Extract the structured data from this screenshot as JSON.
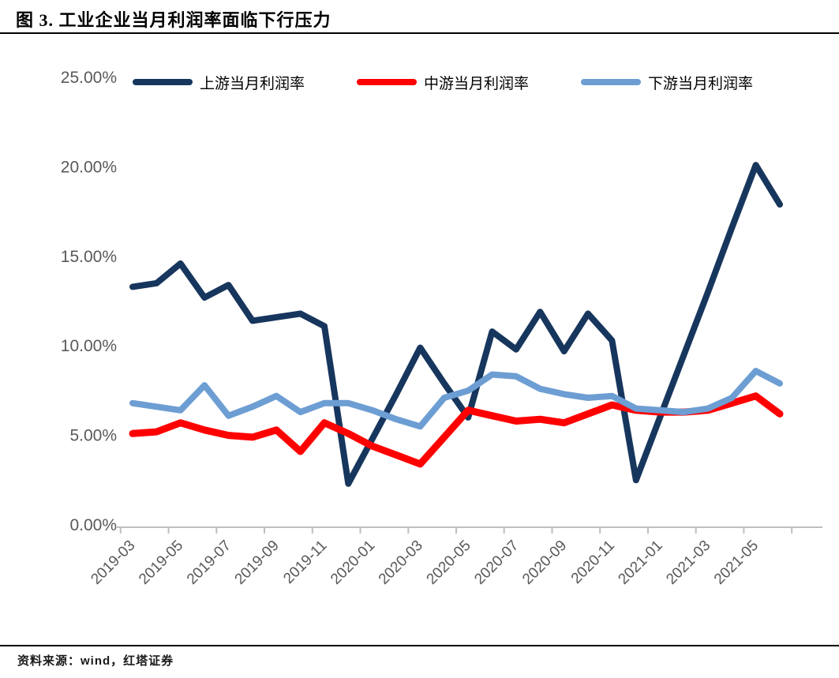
{
  "page": {
    "title": "图 3. 工业企业当月利润率面临下行压力",
    "source_note": "资料来源：wind，红塔证券"
  },
  "chart_data": {
    "type": "line",
    "title": "图 3. 工业企业当月利润率面临下行压力",
    "xlabel": "",
    "ylabel": "",
    "ylim": [
      0,
      25
    ],
    "grid": false,
    "legend_position": "top",
    "axis_color": "#bfbfbf",
    "tick_label_color": "#595959",
    "y_ticks": [
      "0.00%",
      "5.00%",
      "10.00%",
      "15.00%",
      "20.00%",
      "25.00%"
    ],
    "x_tick_labels": [
      "2019-03",
      "2019-05",
      "2019-07",
      "2019-09",
      "2019-11",
      "2020-01",
      "2020-03",
      "2020-05",
      "2020-07",
      "2020-09",
      "2020-11",
      "2021-01",
      "2021-03",
      "2021-05"
    ],
    "categories": [
      "2019-03",
      "2019-04",
      "2019-05",
      "2019-06",
      "2019-07",
      "2019-08",
      "2019-09",
      "2019-10",
      "2019-11",
      "2019-12",
      "2020-01",
      "2020-02",
      "2020-03",
      "2020-04",
      "2020-05",
      "2020-06",
      "2020-07",
      "2020-08",
      "2020-09",
      "2020-10",
      "2020-11",
      "2020-12",
      "2021-01",
      "2021-02",
      "2021-03",
      "2021-04",
      "2021-05",
      "2021-06"
    ],
    "series": [
      {
        "name": "上游当月利润率",
        "color": "#17365d",
        "values": [
          13.3,
          13.5,
          14.6,
          12.7,
          13.4,
          11.4,
          11.6,
          11.8,
          11.1,
          2.3,
          4.8,
          7.3,
          9.9,
          7.9,
          6.0,
          10.8,
          9.8,
          11.9,
          9.7,
          11.8,
          10.3,
          2.5,
          6.0,
          9.5,
          13.0,
          16.6,
          20.1,
          17.9
        ]
      },
      {
        "name": "中游当月利润率",
        "color": "#ff0000",
        "values": [
          5.1,
          5.2,
          5.7,
          5.3,
          5.0,
          4.9,
          5.3,
          4.1,
          5.7,
          5.1,
          4.4,
          3.9,
          3.4,
          4.9,
          6.4,
          6.1,
          5.8,
          5.9,
          5.7,
          6.2,
          6.7,
          6.4,
          6.3,
          6.3,
          6.4,
          6.8,
          7.2,
          6.2
        ]
      },
      {
        "name": "下游当月利润率",
        "color": "#6d9ed3",
        "values": [
          6.8,
          6.6,
          6.4,
          7.8,
          6.1,
          6.6,
          7.2,
          6.3,
          6.8,
          6.8,
          6.4,
          5.9,
          5.5,
          7.1,
          7.5,
          8.4,
          8.3,
          7.6,
          7.3,
          7.1,
          7.2,
          6.5,
          6.4,
          6.3,
          6.5,
          7.1,
          8.6,
          7.9
        ]
      }
    ]
  }
}
